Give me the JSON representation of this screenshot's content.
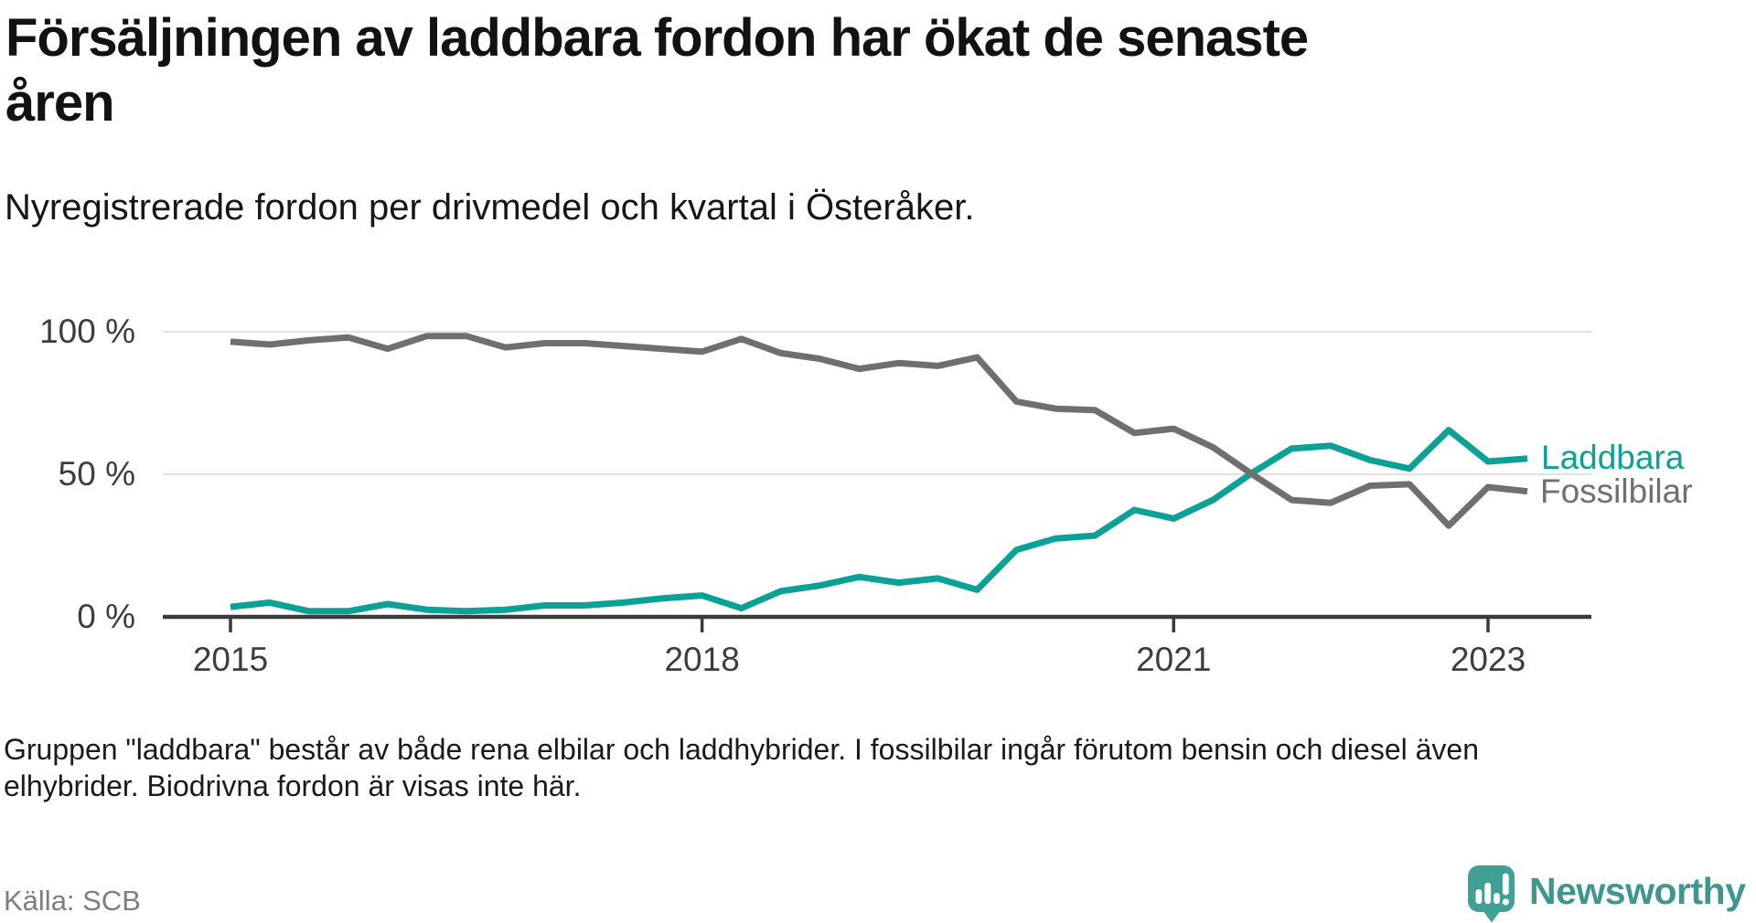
{
  "header": {
    "title_lines": [
      "Försäljningen av laddbara fordon har ökat de senaste",
      "åren"
    ],
    "subtitle": "Nyregistrerade fordon per drivmedel och kvartal i Österåker."
  },
  "chart_data": {
    "type": "line",
    "title": "Försäljningen av laddbara fordon har ökat de senaste åren",
    "subtitle": "Nyregistrerade fordon per drivmedel och kvartal i Österåker.",
    "x_unit": "quarter",
    "x": [
      "2015 Q1",
      "2015 Q2",
      "2015 Q3",
      "2015 Q4",
      "2016 Q1",
      "2016 Q2",
      "2016 Q3",
      "2016 Q4",
      "2017 Q1",
      "2017 Q2",
      "2017 Q3",
      "2017 Q4",
      "2018 Q1",
      "2018 Q2",
      "2018 Q3",
      "2018 Q4",
      "2019 Q1",
      "2019 Q2",
      "2019 Q3",
      "2019 Q4",
      "2020 Q1",
      "2020 Q2",
      "2020 Q3",
      "2020 Q4",
      "2021 Q1",
      "2021 Q2",
      "2021 Q3",
      "2021 Q4",
      "2022 Q1",
      "2022 Q2",
      "2022 Q3",
      "2022 Q4",
      "2023 Q1",
      "2023 Q2"
    ],
    "series": [
      {
        "name": "Laddbara",
        "color": "#0aa296",
        "values": [
          3.5,
          5,
          2,
          2,
          4.5,
          2.5,
          2,
          2.5,
          4,
          4,
          5,
          6.5,
          7.5,
          3,
          9,
          11,
          14,
          12,
          13.5,
          9.5,
          23.5,
          27.5,
          28.5,
          37.5,
          34.5,
          41,
          50.5,
          59,
          60,
          55,
          52,
          65.5,
          54.5,
          55.5
        ]
      },
      {
        "name": "Fossilbilar",
        "color": "#6f6f6f",
        "values": [
          96.5,
          95.5,
          97,
          98,
          94,
          98.5,
          98.5,
          94.5,
          96,
          96,
          95,
          94,
          93,
          97.5,
          92.5,
          90.5,
          87,
          89,
          88,
          91,
          75.5,
          73,
          72.5,
          64.5,
          66,
          59.5,
          50,
          41,
          40,
          46,
          46.5,
          32,
          45.5,
          44
        ]
      }
    ],
    "ylim": [
      0,
      100
    ],
    "yticks": [
      {
        "label": "100 %",
        "value": 100
      },
      {
        "label": "50 %",
        "value": 50
      },
      {
        "label": "0 %",
        "value": 0
      }
    ],
    "xticks": [
      {
        "label": "2015",
        "index": 0
      },
      {
        "label": "2018",
        "index": 12
      },
      {
        "label": "2021",
        "index": 24
      },
      {
        "label": "2023",
        "index": 32
      }
    ],
    "grid": true,
    "legend_position": "right-of-line-end",
    "colors": {
      "axis": "#3a3a3a",
      "gridline": "#e3e3e3",
      "tick_text": "#3d3d3d"
    }
  },
  "footnote": {
    "lines": [
      "Gruppen \"laddbara\" består av både rena elbilar och laddhybrider. I fossilbilar ingår förutom bensin och diesel även",
      "elhybrider. Biodrivna fordon är visas inte här."
    ]
  },
  "source": "Källa: SCB",
  "logo": {
    "text": "Newsworthy",
    "icon": "newsworthy-speech-bubble-bar-chart-icon",
    "icon_color": "#3fa096",
    "text_color": "#3f968f"
  }
}
